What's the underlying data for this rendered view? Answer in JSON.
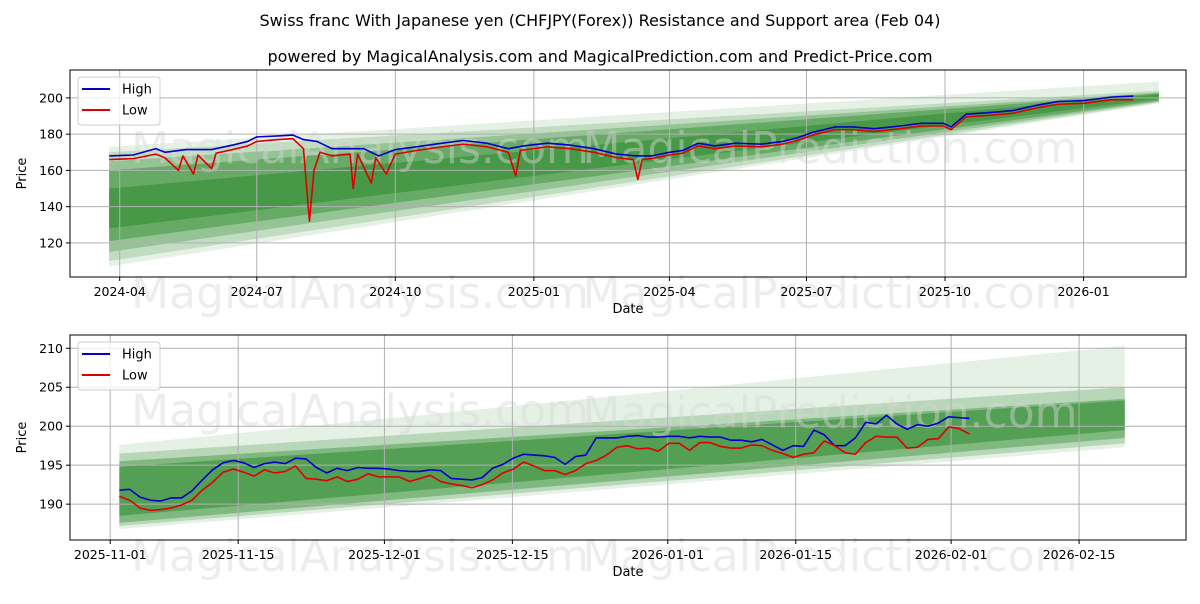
{
  "figure": {
    "title": "Swiss franc With Japanese yen (CHFJPY(Forex)) Resistance and Support area (Feb 04)",
    "subtitle": "powered by MagicalAnalysis.com and MagicalPrediction.com and Predict-Price.com",
    "watermarks": [
      "MagicalAnalysis.com",
      "MagicalPrediction.com"
    ]
  },
  "colors": {
    "high": "#0000cc",
    "low": "#e00000",
    "band": "#2e8b2e",
    "grid": "#b0b0b0"
  },
  "chart_data": [
    {
      "type": "line",
      "xlabel": "Date",
      "ylabel": "Price",
      "xlim": [
        "2024-02-28",
        "2026-03-10"
      ],
      "ylim": [
        101.2,
        215.4
      ],
      "yticks": [
        120,
        140,
        160,
        180,
        200
      ],
      "xticks": [
        [
          "2024-04-01",
          "2024-04"
        ],
        [
          "2024-07-01",
          "2024-07"
        ],
        [
          "2024-10-01",
          "2024-10"
        ],
        [
          "2025-01-01",
          "2025-01"
        ],
        [
          "2025-04-01",
          "2025-04"
        ],
        [
          "2025-07-01",
          "2025-07"
        ],
        [
          "2025-10-01",
          "2025-10"
        ],
        [
          "2026-01-01",
          "2026-01"
        ]
      ],
      "grid": true,
      "legend": {
        "position": "top-left",
        "entries": [
          "High",
          "Low"
        ]
      },
      "bands": {
        "x": [
          "2024-03-25",
          "2026-02-20"
        ],
        "layers": [
          {
            "start": [
              107,
              173
            ],
            "end": [
              197,
              209
            ],
            "opacity": 0.12
          },
          {
            "start": [
              110,
              170
            ],
            "end": [
              197.5,
              204
            ],
            "opacity": 0.2
          },
          {
            "start": [
              115,
              165
            ],
            "end": [
              198,
              203
            ],
            "opacity": 0.3
          },
          {
            "start": [
              121,
              160
            ],
            "end": [
              198.5,
              202.5
            ],
            "opacity": 0.45
          },
          {
            "start": [
              128,
              150
            ],
            "end": [
              199.5,
              202
            ],
            "opacity": 0.55
          }
        ]
      },
      "series": [
        {
          "name": "High",
          "points": [
            [
              "2024-03-25",
              168
            ],
            [
              "2024-04-10",
              168.5
            ],
            [
              "2024-04-25",
              172
            ],
            [
              "2024-05-01",
              170
            ],
            [
              "2024-05-15",
              171.5
            ],
            [
              "2024-06-01",
              171.5
            ],
            [
              "2024-06-15",
              174
            ],
            [
              "2024-06-25",
              176
            ],
            [
              "2024-07-01",
              178.5
            ],
            [
              "2024-07-15",
              179
            ],
            [
              "2024-07-25",
              179.5
            ],
            [
              "2024-08-01",
              177
            ],
            [
              "2024-08-10",
              176
            ],
            [
              "2024-08-20",
              172
            ],
            [
              "2024-09-01",
              172
            ],
            [
              "2024-09-10",
              172
            ],
            [
              "2024-09-20",
              168
            ],
            [
              "2024-10-01",
              171.5
            ],
            [
              "2024-10-15",
              173
            ],
            [
              "2024-11-01",
              175
            ],
            [
              "2024-11-15",
              176.5
            ],
            [
              "2024-12-01",
              175
            ],
            [
              "2024-12-15",
              172
            ],
            [
              "2024-12-25",
              173.5
            ],
            [
              "2025-01-10",
              175
            ],
            [
              "2025-01-25",
              174
            ],
            [
              "2025-02-10",
              172
            ],
            [
              "2025-02-25",
              169
            ],
            [
              "2025-03-10",
              168
            ],
            [
              "2025-03-20",
              168
            ],
            [
              "2025-04-01",
              170
            ],
            [
              "2025-04-10",
              171
            ],
            [
              "2025-04-20",
              175
            ],
            [
              "2025-05-01",
              173.5
            ],
            [
              "2025-05-15",
              175
            ],
            [
              "2025-06-01",
              174.5
            ],
            [
              "2025-06-15",
              176
            ],
            [
              "2025-06-25",
              178
            ],
            [
              "2025-07-05",
              181
            ],
            [
              "2025-07-20",
              184
            ],
            [
              "2025-08-01",
              184
            ],
            [
              "2025-08-15",
              183
            ],
            [
              "2025-09-01",
              184.5
            ],
            [
              "2025-09-15",
              186
            ],
            [
              "2025-09-30",
              186
            ],
            [
              "2025-10-05",
              184
            ],
            [
              "2025-10-15",
              191
            ],
            [
              "2025-11-01",
              192
            ],
            [
              "2025-11-15",
              193
            ],
            [
              "2025-12-01",
              196
            ],
            [
              "2025-12-15",
              198
            ],
            [
              "2026-01-01",
              198.5
            ],
            [
              "2026-01-20",
              200.5
            ],
            [
              "2026-02-03",
              201
            ]
          ]
        },
        {
          "name": "Low",
          "points": [
            [
              "2024-03-25",
              166
            ],
            [
              "2024-04-10",
              166.5
            ],
            [
              "2024-04-25",
              169
            ],
            [
              "2024-05-01",
              167
            ],
            [
              "2024-05-10",
              160
            ],
            [
              "2024-05-13",
              168
            ],
            [
              "2024-05-20",
              158
            ],
            [
              "2024-05-23",
              168.5
            ],
            [
              "2024-06-01",
              161
            ],
            [
              "2024-06-04",
              169.5
            ],
            [
              "2024-06-15",
              171.5
            ],
            [
              "2024-06-25",
              173.5
            ],
            [
              "2024-07-01",
              176
            ],
            [
              "2024-07-15",
              177
            ],
            [
              "2024-07-25",
              177.5
            ],
            [
              "2024-08-01",
              172
            ],
            [
              "2024-08-05",
              132
            ],
            [
              "2024-08-08",
              160
            ],
            [
              "2024-08-12",
              170
            ],
            [
              "2024-08-20",
              168
            ],
            [
              "2024-09-01",
              169
            ],
            [
              "2024-09-03",
              150
            ],
            [
              "2024-09-06",
              169
            ],
            [
              "2024-09-15",
              153
            ],
            [
              "2024-09-18",
              167
            ],
            [
              "2024-09-25",
              158
            ],
            [
              "2024-10-01",
              169
            ],
            [
              "2024-10-15",
              171
            ],
            [
              "2024-11-01",
              173
            ],
            [
              "2024-11-15",
              174.5
            ],
            [
              "2024-12-01",
              173
            ],
            [
              "2024-12-15",
              170
            ],
            [
              "2024-12-20",
              157
            ],
            [
              "2024-12-23",
              171
            ],
            [
              "2025-01-10",
              173
            ],
            [
              "2025-01-25",
              172
            ],
            [
              "2025-02-10",
              170
            ],
            [
              "2025-02-25",
              167
            ],
            [
              "2025-03-08",
              166
            ],
            [
              "2025-03-11",
              155
            ],
            [
              "2025-03-14",
              166
            ],
            [
              "2025-03-20",
              166.5
            ],
            [
              "2025-04-01",
              168.5
            ],
            [
              "2025-04-10",
              169.5
            ],
            [
              "2025-04-20",
              173.5
            ],
            [
              "2025-05-01",
              172
            ],
            [
              "2025-05-15",
              173.5
            ],
            [
              "2025-06-01",
              173
            ],
            [
              "2025-06-15",
              174.5
            ],
            [
              "2025-06-25",
              176.5
            ],
            [
              "2025-07-05",
              179.5
            ],
            [
              "2025-07-20",
              182.5
            ],
            [
              "2025-08-01",
              182.5
            ],
            [
              "2025-08-15",
              181.5
            ],
            [
              "2025-09-01",
              183
            ],
            [
              "2025-09-15",
              184.5
            ],
            [
              "2025-09-30",
              184.5
            ],
            [
              "2025-10-05",
              182.5
            ],
            [
              "2025-10-15",
              189.5
            ],
            [
              "2025-11-01",
              190.5
            ],
            [
              "2025-11-15",
              191.5
            ],
            [
              "2025-12-01",
              194.5
            ],
            [
              "2025-12-15",
              196.5
            ],
            [
              "2026-01-01",
              197
            ],
            [
              "2026-01-20",
              199
            ],
            [
              "2026-02-03",
              199
            ]
          ]
        }
      ]
    },
    {
      "type": "line",
      "xlabel": "Date",
      "ylabel": "Price",
      "xlim": [
        "2025-10-27.6",
        "2026-02-26.7"
      ],
      "ylim": [
        185.4,
        211.7
      ],
      "yticks": [
        190,
        195,
        200,
        205,
        210
      ],
      "xticks": [
        [
          "2025-11-01",
          "2025-11-01"
        ],
        [
          "2025-11-15",
          "2025-11-15"
        ],
        [
          "2025-12-01",
          "2025-12-01"
        ],
        [
          "2025-12-15",
          "2025-12-15"
        ],
        [
          "2026-01-01",
          "2026-01-01"
        ],
        [
          "2026-01-15",
          "2026-01-15"
        ],
        [
          "2026-02-01",
          "2026-02-01"
        ],
        [
          "2026-02-15",
          "2026-02-15"
        ]
      ],
      "grid": true,
      "legend": {
        "position": "top-left",
        "entries": [
          "High",
          "Low"
        ]
      },
      "bands": {
        "x": [
          "2025-11-02",
          "2026-02-20"
        ],
        "layers": [
          {
            "start": [
              186.8,
              197.6
            ],
            "end": [
              197.3,
              210.3
            ],
            "opacity": 0.12
          },
          {
            "start": [
              187.2,
              196.5
            ],
            "end": [
              197.8,
              205
            ],
            "opacity": 0.25
          },
          {
            "start": [
              187.6,
              195.5
            ],
            "end": [
              198.5,
              203.5
            ],
            "opacity": 0.4
          },
          {
            "start": [
              188.5,
              194.8
            ],
            "end": [
              199.5,
              203.3
            ],
            "opacity": 0.55
          }
        ]
      },
      "series": [
        {
          "name": "High",
          "x_range": [
            "2025-11-02",
            "2026-02-03"
          ],
          "values": [
            191.8,
            191.9,
            190.9,
            190.5,
            190.4,
            190.8,
            190.8,
            191.7,
            193.1,
            194.4,
            195.3,
            195.6,
            195.3,
            194.7,
            195.2,
            195.4,
            195.2,
            195.9,
            195.8,
            194.7,
            194.0,
            194.6,
            194.3,
            194.7,
            194.6,
            194.6,
            194.5,
            194.3,
            194.2,
            194.2,
            194.4,
            194.3,
            193.3,
            193.2,
            193.1,
            193.4,
            194.6,
            195.1,
            195.9,
            196.4,
            196.3,
            196.2,
            196.0,
            195.1,
            196.1,
            196.3,
            198.5,
            198.5,
            198.5,
            198.7,
            198.8,
            198.6,
            198.6,
            198.7,
            198.7,
            198.5,
            198.7,
            198.6,
            198.6,
            198.2,
            198.2,
            198.0,
            198.3,
            197.6,
            196.9,
            197.5,
            197.4,
            199.5,
            198.9,
            197.5,
            197.5,
            198.5,
            200.5,
            200.3,
            201.4,
            200.3,
            199.6,
            200.2,
            200.0,
            200.4,
            201.2,
            201.1,
            201.0
          ]
        },
        {
          "name": "Low",
          "x_range": [
            "2025-11-02",
            "2026-02-03"
          ],
          "values": [
            191.0,
            190.5,
            189.5,
            189.2,
            189.3,
            189.5,
            189.9,
            190.5,
            191.8,
            192.8,
            194.1,
            194.5,
            194.1,
            193.6,
            194.4,
            194.0,
            194.2,
            194.9,
            193.3,
            193.2,
            193.0,
            193.5,
            192.9,
            193.2,
            193.9,
            193.5,
            193.5,
            193.5,
            192.9,
            193.3,
            193.7,
            192.9,
            192.6,
            192.4,
            192.1,
            192.5,
            193.1,
            194.0,
            194.5,
            195.4,
            194.9,
            194.3,
            194.3,
            193.8,
            194.3,
            195.2,
            195.6,
            196.3,
            197.3,
            197.5,
            197.1,
            197.2,
            196.8,
            197.8,
            197.8,
            196.9,
            197.9,
            197.9,
            197.4,
            197.2,
            197.2,
            197.6,
            197.5,
            196.9,
            196.5,
            196.0,
            196.4,
            196.6,
            198.1,
            197.5,
            196.6,
            196.4,
            197.9,
            198.7,
            198.6,
            198.6,
            197.2,
            197.3,
            198.3,
            198.4,
            199.9,
            199.7,
            199.0
          ]
        }
      ]
    }
  ]
}
